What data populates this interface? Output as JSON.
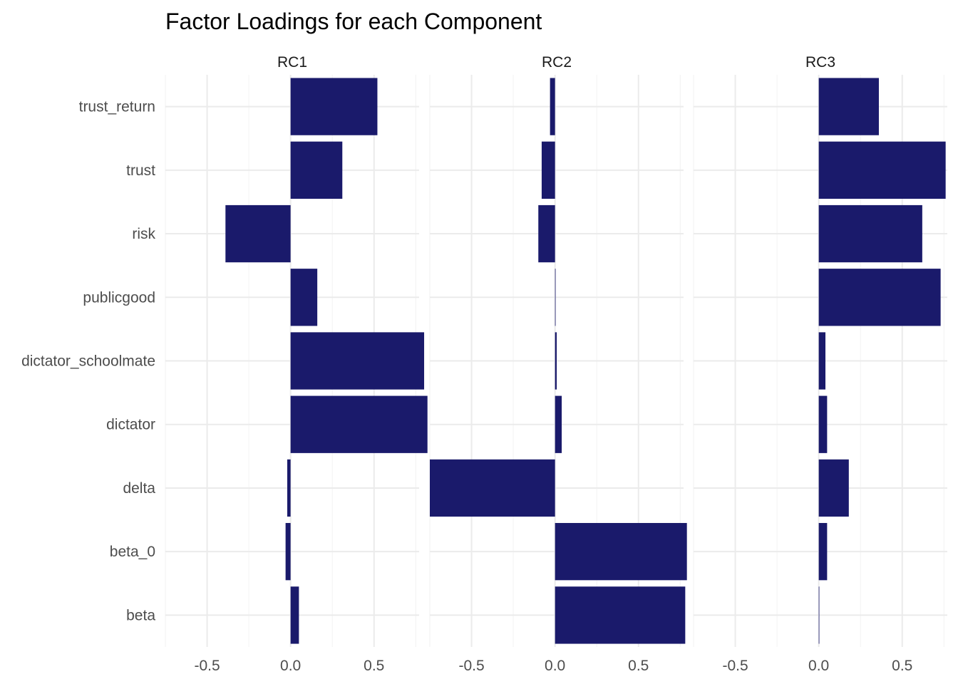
{
  "chart_data": {
    "type": "bar",
    "orientation": "horizontal",
    "title": "Factor Loadings for each Component",
    "xlabel": "",
    "ylabel": "",
    "xlim": [
      -0.75,
      0.77
    ],
    "xticks": [
      -0.5,
      0.0,
      0.5
    ],
    "xtick_labels": [
      "-0.5",
      "0.0",
      "0.5"
    ],
    "grid": true,
    "bar_color": "#1A1A6B",
    "categories": [
      "trust_return",
      "trust",
      "risk",
      "publicgood",
      "dictator_schoolmate",
      "dictator",
      "delta",
      "beta_0",
      "beta"
    ],
    "facets": [
      {
        "name": "RC1",
        "values": [
          0.52,
          0.31,
          -0.39,
          0.16,
          0.8,
          0.82,
          -0.02,
          -0.03,
          0.05
        ]
      },
      {
        "name": "RC2",
        "values": [
          -0.03,
          -0.08,
          -0.1,
          0.0,
          0.01,
          0.04,
          -0.75,
          0.79,
          0.78
        ]
      },
      {
        "name": "RC3",
        "values": [
          0.36,
          0.76,
          0.62,
          0.73,
          0.04,
          0.05,
          0.18,
          0.05,
          0.0
        ]
      }
    ]
  }
}
